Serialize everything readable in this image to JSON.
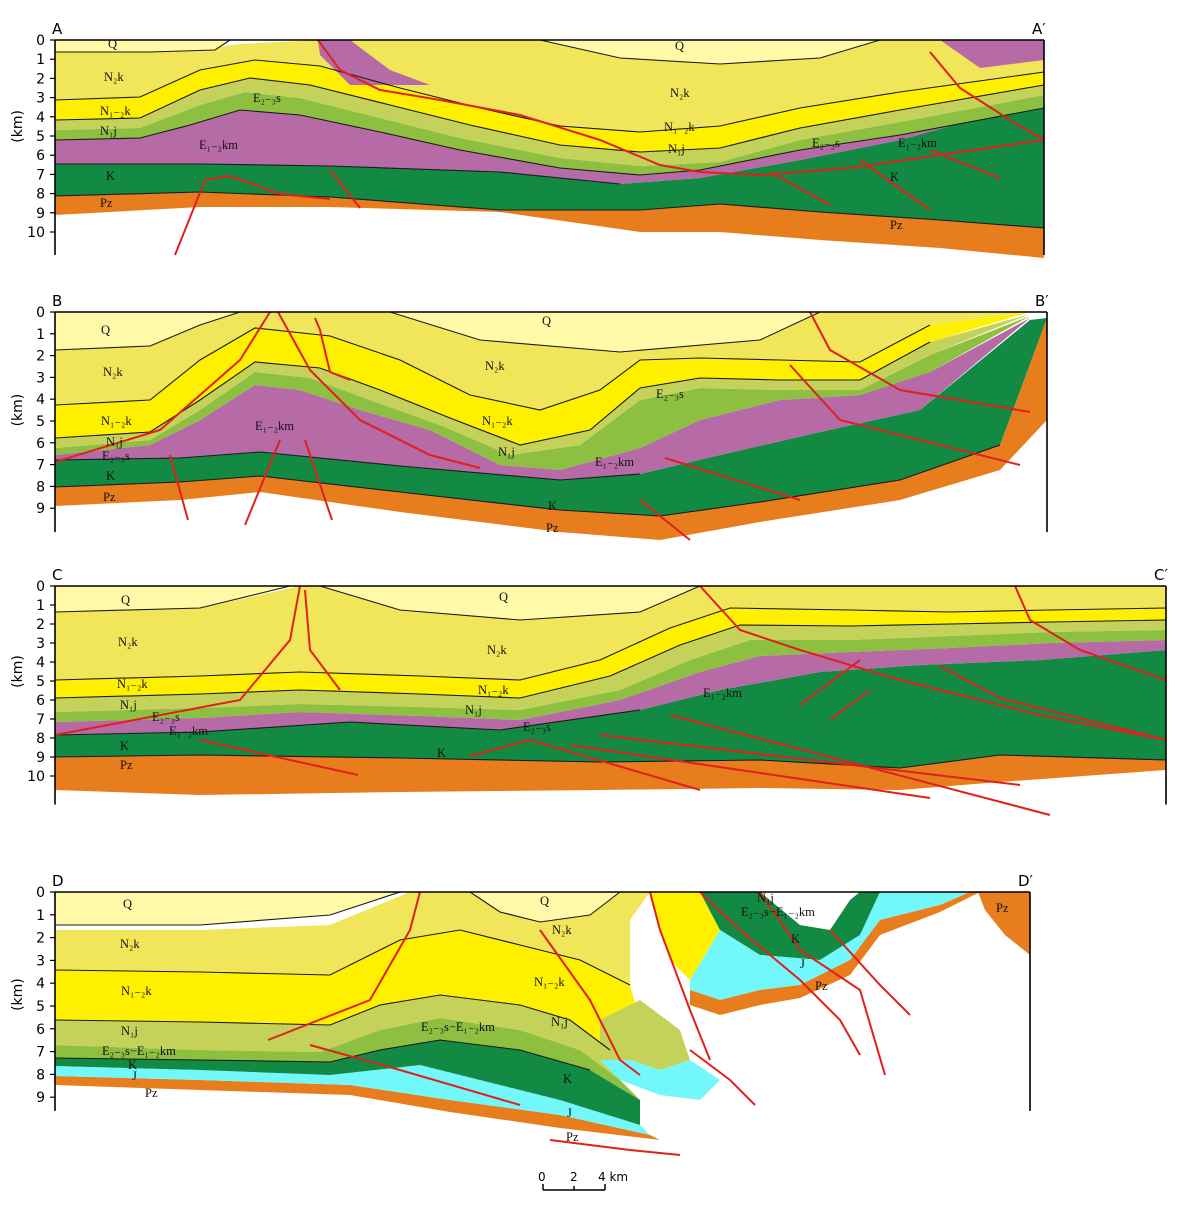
{
  "figure": {
    "depth_unit": "(km)",
    "colors": {
      "Q": "#fff9a8",
      "N2k": "#f1e65a",
      "N1-2k": "#fff000",
      "N1j": "#c5d25a",
      "E2-3s": "#8dc040",
      "E1-2km": "#b66aa6",
      "K": "#138a43",
      "J": "#72f8fa",
      "Pz": "#e87d1e",
      "fault": "#e0201c"
    },
    "scale_bar": {
      "labels": [
        "0",
        "2",
        "4 km"
      ]
    },
    "sections": [
      {
        "id": "A",
        "label_start": "A",
        "label_end": "A′",
        "depth_ticks": [
          "0",
          "1",
          "2",
          "3",
          "4",
          "5",
          "6",
          "7",
          "8",
          "9",
          "10"
        ],
        "units": [
          {
            "key": "Q",
            "text": "Q"
          },
          {
            "key": "Q2",
            "text": "Q"
          },
          {
            "key": "N2k",
            "text": "N₂k"
          },
          {
            "key": "N2k_2",
            "text": "N₂k"
          },
          {
            "key": "N12k",
            "text": "N₁₋₂k"
          },
          {
            "key": "N12k_2",
            "text": "N₁₋₂k"
          },
          {
            "key": "N1j",
            "text": "N₁j"
          },
          {
            "key": "N1j_2",
            "text": "N₁j"
          },
          {
            "key": "E23s",
            "text": "E₂₋₃s"
          },
          {
            "key": "E23s_2",
            "text": "E₂₋₃s"
          },
          {
            "key": "E12km",
            "text": "E₁₋₂km"
          },
          {
            "key": "E12km_2",
            "text": "E₁₋₂km"
          },
          {
            "key": "K",
            "text": "K"
          },
          {
            "key": "K_2",
            "text": "K"
          },
          {
            "key": "Pz",
            "text": "Pz"
          },
          {
            "key": "Pz_2",
            "text": "Pz"
          }
        ]
      },
      {
        "id": "B",
        "label_start": "B",
        "label_end": "B′",
        "depth_ticks": [
          "0",
          "1",
          "2",
          "3",
          "4",
          "5",
          "6",
          "7",
          "8",
          "9"
        ],
        "units": [
          {
            "key": "Q",
            "text": "Q"
          },
          {
            "key": "Q2",
            "text": "Q"
          },
          {
            "key": "N2k",
            "text": "N₂k"
          },
          {
            "key": "N2k_2",
            "text": "N₂k"
          },
          {
            "key": "N12k",
            "text": "N₁₋₂k"
          },
          {
            "key": "N12k_2",
            "text": "N₁₋₂k"
          },
          {
            "key": "N1j",
            "text": "N₁j"
          },
          {
            "key": "N1j_2",
            "text": "N₁j"
          },
          {
            "key": "E23s",
            "text": "E₂₋₃s"
          },
          {
            "key": "E23s_2",
            "text": "E₂₋₃s"
          },
          {
            "key": "E12km",
            "text": "E₁₋₂km"
          },
          {
            "key": "E12km_2",
            "text": "E₁₋₂km"
          },
          {
            "key": "K",
            "text": "K"
          },
          {
            "key": "K_2",
            "text": "K"
          },
          {
            "key": "Pz",
            "text": "Pz"
          },
          {
            "key": "Pz_2",
            "text": "Pz"
          }
        ]
      },
      {
        "id": "C",
        "label_start": "C",
        "label_end": "C′",
        "depth_ticks": [
          "0",
          "1",
          "2",
          "3",
          "4",
          "5",
          "6",
          "7",
          "8",
          "9",
          "10"
        ],
        "units": [
          {
            "key": "Q",
            "text": "Q"
          },
          {
            "key": "Q2",
            "text": "Q"
          },
          {
            "key": "N2k",
            "text": "N₂k"
          },
          {
            "key": "N2k_2",
            "text": "N₂k"
          },
          {
            "key": "N12k",
            "text": "N₁₋₂k"
          },
          {
            "key": "N12k_2",
            "text": "N₁₋₂k"
          },
          {
            "key": "N1j",
            "text": "N₁j"
          },
          {
            "key": "N1j_2",
            "text": "N₁j"
          },
          {
            "key": "E23s",
            "text": "E₂₋₃s"
          },
          {
            "key": "E23s_2",
            "text": "E₂₋₃s"
          },
          {
            "key": "E12km",
            "text": "E₁₋₂km"
          },
          {
            "key": "E12km_2",
            "text": "E₁₋₂km"
          },
          {
            "key": "K",
            "text": "K"
          },
          {
            "key": "K_2",
            "text": "K"
          },
          {
            "key": "Pz",
            "text": "Pz"
          }
        ]
      },
      {
        "id": "D",
        "label_start": "D",
        "label_end": "D′",
        "depth_ticks": [
          "0",
          "1",
          "2",
          "3",
          "4",
          "5",
          "6",
          "7",
          "8",
          "9"
        ],
        "units": [
          {
            "key": "Q",
            "text": "Q"
          },
          {
            "key": "Q2",
            "text": "Q"
          },
          {
            "key": "N2k",
            "text": "N₂k"
          },
          {
            "key": "N2k_2",
            "text": "N₂k"
          },
          {
            "key": "N12k",
            "text": "N₁₋₂k"
          },
          {
            "key": "N12k_2",
            "text": "N₁₋₂k"
          },
          {
            "key": "N1j",
            "text": "N₁j"
          },
          {
            "key": "N1j_2",
            "text": "N₁j"
          },
          {
            "key": "N1j_3",
            "text": "N₁j"
          },
          {
            "key": "ES",
            "text": "E₂₋₃s−E₁₋₂km"
          },
          {
            "key": "ES_2",
            "text": "E₂₋₃s−E₁₋₂km"
          },
          {
            "key": "ES_3",
            "text": "E₂₋₃s−E₁₋₂km"
          },
          {
            "key": "K",
            "text": "K"
          },
          {
            "key": "K_2",
            "text": "K"
          },
          {
            "key": "K_3",
            "text": "K"
          },
          {
            "key": "J",
            "text": "J"
          },
          {
            "key": "J_2",
            "text": "J"
          },
          {
            "key": "J_3",
            "text": "J"
          },
          {
            "key": "Pz",
            "text": "Pz"
          },
          {
            "key": "Pz_2",
            "text": "Pz"
          },
          {
            "key": "Pz_3",
            "text": "Pz"
          },
          {
            "key": "Pz_4",
            "text": "Pz"
          }
        ]
      }
    ]
  }
}
